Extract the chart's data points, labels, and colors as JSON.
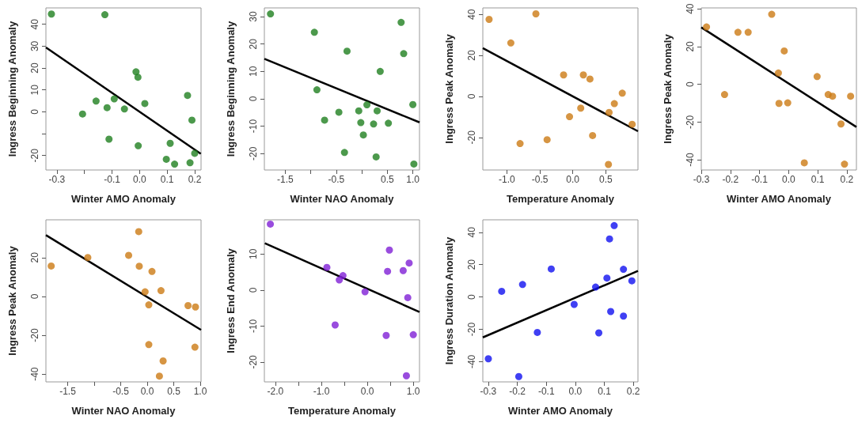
{
  "chart_data": [
    {
      "type": "scatter",
      "xlabel": "Winter AMO Anomaly",
      "ylabel": "Ingress Beginning Anomaly",
      "xlim": [
        -0.34,
        0.223
      ],
      "ylim": [
        -26.6,
        47.5
      ],
      "xticks": [
        -0.3,
        {
          "value": -0.2,
          "label": null
        },
        -0.1,
        {
          "value": 0,
          "label": "0.0"
        },
        0.1,
        0.2
      ],
      "yticks": [
        -20,
        {
          "value": -10,
          "label": null
        },
        0,
        10,
        20,
        30,
        40
      ],
      "series": [
        {
          "color": "#1f7f1f",
          "marker": "circle",
          "x": [
            -0.32,
            -0.126,
            -0.207,
            -0.158,
            -0.118,
            -0.092,
            -0.111,
            -0.055,
            -0.013,
            -0.006,
            -0.005,
            0.019,
            0.111,
            0.097,
            0.127,
            0.174,
            0.19,
            0.183,
            0.2
          ],
          "values": [
            44.7,
            44.4,
            -1.0,
            4.9,
            1.9,
            5.9,
            -12.5,
            1.3,
            18.3,
            15.8,
            -15.5,
            3.8,
            -14.4,
            -21.7,
            -23.9,
            7.5,
            -3.8,
            -23.3,
            -19.0
          ]
        },
        {
          "type": "line",
          "color": "#000000",
          "x": [
            -0.34,
            0.222
          ],
          "values": [
            29.4,
            -19.2
          ]
        }
      ]
    },
    {
      "type": "scatter",
      "xlabel": "Winter NAO Anomaly",
      "ylabel": "Ingress Beginning Anomaly",
      "xlim": [
        -1.91,
        1.13
      ],
      "ylim": [
        -26,
        33.2
      ],
      "xticks": [
        -1.5,
        {
          "value": -1,
          "label": null
        },
        -0.5,
        {
          "value": 0,
          "label": null
        },
        0.5,
        {
          "value": 1,
          "label": "1.0"
        }
      ],
      "yticks": [
        -20,
        -10,
        0,
        10,
        20,
        30
      ],
      "series": [
        {
          "color": "#1f7f1f",
          "marker": "circle",
          "x": [
            -1.79,
            -0.93,
            -0.88,
            -0.73,
            -0.45,
            -0.34,
            -0.29,
            -0.06,
            -0.02,
            0.03,
            0.1,
            0.23,
            0.3,
            0.28,
            0.36,
            0.52,
            0.77,
            0.82,
            1.0,
            1.02
          ],
          "values": [
            31.0,
            24.3,
            3.3,
            -7.8,
            -4.9,
            -19.6,
            17.4,
            -4.4,
            -8.7,
            -13.2,
            -2.2,
            -9.2,
            -4.4,
            -21.2,
            10.0,
            -8.9,
            27.9,
            16.5,
            -2.1,
            -23.8
          ]
        },
        {
          "type": "line",
          "color": "#000000",
          "x": [
            -1.91,
            1.13
          ],
          "values": [
            14.6,
            -8.6
          ]
        }
      ]
    },
    {
      "type": "scatter",
      "xlabel": "Temperature Anomaly",
      "ylabel": "Ingress Peak Anomaly",
      "xlim": [
        -1.365,
        0.988
      ],
      "ylim": [
        -35.9,
        43.2
      ],
      "xticks": [
        {
          "value": -1,
          "label": "-1.0"
        },
        -0.5,
        {
          "value": 0,
          "label": "0.0"
        },
        0.5
      ],
      "yticks": [
        -20,
        0,
        20,
        40
      ],
      "series": [
        {
          "color": "#cc7a14",
          "marker": "circle",
          "x": [
            -1.27,
            -0.94,
            -0.56,
            -0.8,
            -0.39,
            -0.14,
            -0.05,
            0.12,
            0.16,
            0.26,
            0.3,
            0.54,
            0.55,
            0.63,
            0.75,
            0.9
          ],
          "values": [
            37.6,
            26.1,
            40.3,
            -23.0,
            -21.1,
            10.5,
            -9.9,
            -5.7,
            10.5,
            8.5,
            -19.1,
            -33.2,
            -7.8,
            -3.5,
            1.6,
            -13.6
          ]
        },
        {
          "type": "line",
          "color": "#000000",
          "x": [
            -1.365,
            0.988
          ],
          "values": [
            23.6,
            -17.0
          ]
        }
      ]
    },
    {
      "type": "scatter",
      "xlabel": "Winter AMO Anomaly",
      "ylabel": "Ingress Peak Anomaly",
      "xlim": [
        -0.3,
        0.233
      ],
      "ylim": [
        -45.4,
        40.5
      ],
      "xticks": [
        -0.3,
        -0.2,
        -0.1,
        {
          "value": 0,
          "label": "0.0"
        },
        0.1,
        0.2
      ],
      "yticks": [
        -40,
        -20,
        0,
        20,
        40
      ],
      "series": [
        {
          "color": "#cc7a14",
          "marker": "circle",
          "x": [
            -0.282,
            -0.22,
            -0.174,
            -0.139,
            -0.058,
            -0.035,
            -0.033,
            -0.015,
            -0.003,
            0.054,
            0.098,
            0.136,
            0.151,
            0.18,
            0.192,
            0.213
          ],
          "values": [
            30.4,
            -5.4,
            27.6,
            27.6,
            37.1,
            6.0,
            -10.1,
            17.7,
            -9.8,
            -41.6,
            4.1,
            -5.4,
            -6.3,
            -21.0,
            -42.3,
            -6.3
          ]
        },
        {
          "type": "line",
          "color": "#000000",
          "x": [
            -0.3,
            0.233
          ],
          "values": [
            30.2,
            -22.6
          ]
        }
      ]
    },
    {
      "type": "scatter",
      "xlabel": "Winter NAO Anomaly",
      "ylabel": "Ingress Peak Anomaly",
      "xlim": [
        -1.91,
        1.015
      ],
      "ylim": [
        -44,
        39.5
      ],
      "xticks": [
        -1.5,
        {
          "value": -1,
          "label": null
        },
        -0.5,
        {
          "value": 0,
          "label": "0.0"
        },
        0.5,
        {
          "value": 1,
          "label": "1.0"
        }
      ],
      "yticks": [
        -40,
        -20,
        0,
        20
      ],
      "series": [
        {
          "color": "#cc7a14",
          "marker": "circle",
          "x": [
            -1.81,
            -1.12,
            -0.35,
            -0.16,
            -0.15,
            0.09,
            -0.04,
            0.03,
            0.03,
            0.26,
            0.3,
            0.23,
            0.77,
            0.91,
            0.9
          ],
          "values": [
            15.7,
            20.1,
            21.2,
            33.4,
            15.6,
            12.9,
            2.4,
            -4.3,
            -24.8,
            3.0,
            -33.2,
            -41.0,
            -4.7,
            -5.4,
            -26.1
          ]
        },
        {
          "type": "line",
          "color": "#000000",
          "x": [
            -1.91,
            1.015
          ],
          "values": [
            31.6,
            -17.2
          ]
        }
      ]
    },
    {
      "type": "scatter",
      "xlabel": "Temperature Anomaly",
      "ylabel": "Ingress End Anomaly",
      "xlim": [
        -2.24,
        1.135
      ],
      "ylim": [
        -25.5,
        19.5
      ],
      "xticks": [
        {
          "value": -2,
          "label": "-2.0"
        },
        {
          "value": -1.5,
          "label": null
        },
        {
          "value": -1,
          "label": "-1.0"
        },
        {
          "value": -0.5,
          "label": null
        },
        {
          "value": 0,
          "label": "0.0"
        },
        {
          "value": 0.5,
          "label": null
        },
        {
          "value": 1,
          "label": "1.0"
        }
      ],
      "yticks": [
        -20,
        -10,
        0,
        10
      ],
      "series": [
        {
          "color": "#7f1fd6",
          "marker": "circle",
          "x": [
            -2.11,
            -0.88,
            -0.61,
            -0.53,
            -0.7,
            -0.05,
            0.41,
            0.44,
            0.48,
            0.78,
            0.88,
            0.91,
            0.85,
            1.0
          ],
          "values": [
            18.3,
            6.3,
            2.8,
            4.0,
            -9.7,
            -0.5,
            -12.6,
            5.2,
            11.1,
            5.4,
            -2.1,
            7.5,
            -23.8,
            -12.4
          ]
        },
        {
          "type": "line",
          "color": "#000000",
          "x": [
            -2.23,
            1.135
          ],
          "values": [
            13.0,
            -6.1
          ]
        }
      ]
    },
    {
      "type": "scatter",
      "xlabel": "Winter AMO Anomaly",
      "ylabel": "Ingress Duration Anomaly",
      "xlim": [
        -0.319,
        0.216
      ],
      "ylim": [
        -52.5,
        47.7
      ],
      "xticks": [
        -0.3,
        -0.2,
        -0.1,
        {
          "value": 0,
          "label": "0.0"
        },
        0.1,
        0.2
      ],
      "yticks": [
        -40,
        -20,
        0,
        20,
        40
      ],
      "series": [
        {
          "color": "#1010f0",
          "marker": "circle",
          "x": [
            -0.3,
            -0.254,
            -0.182,
            -0.131,
            -0.083,
            -0.195,
            -0.004,
            0.07,
            0.081,
            0.109,
            0.118,
            0.122,
            0.134,
            0.166,
            0.166,
            0.195
          ],
          "values": [
            -38.2,
            3.5,
            7.7,
            -21.9,
            17.3,
            -49.2,
            -4.6,
            6.1,
            -22.2,
            11.7,
            35.9,
            -9.0,
            44.1,
            17.1,
            -11.8,
            10.0
          ]
        },
        {
          "type": "line",
          "color": "#000000",
          "x": [
            -0.319,
            0.216
          ],
          "values": [
            -25.0,
            16.1
          ]
        }
      ]
    }
  ]
}
